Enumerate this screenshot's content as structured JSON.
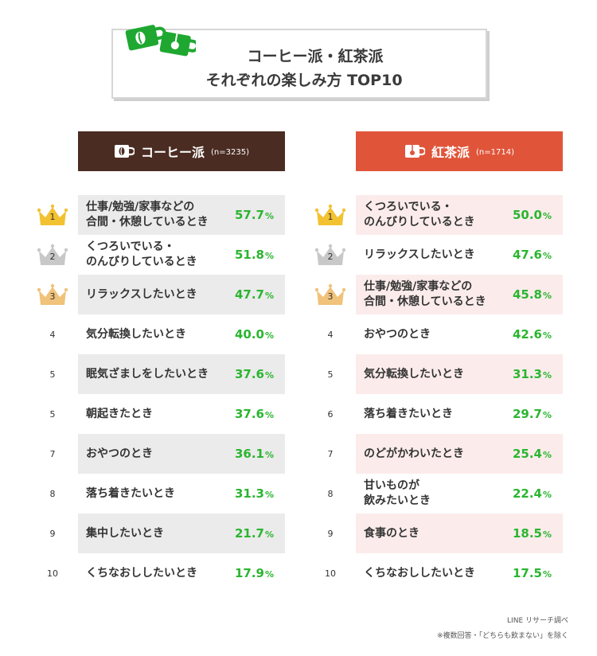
{
  "title": {
    "line1": "コーヒー派・紅茶派",
    "line2": "それぞれの楽しみ方 TOP10"
  },
  "colors": {
    "coffee_header": "#4a2c22",
    "tea_header": "#e0553a",
    "coffee_row_shade": "#ebebeb",
    "tea_row_shade": "#fbeceb",
    "percent_text": "#2bb530",
    "title_icon": "#1fa831",
    "gold": "#f2c230",
    "silver": "#c8c8c8",
    "bronze": "#f0c27a"
  },
  "icons": [
    "coffee-cup-icon",
    "tea-cup-icon",
    "crown-icon"
  ],
  "chart_data": [
    {
      "type": "table",
      "title": "コーヒー派",
      "sample": "(n=3235)",
      "unit": "%",
      "ranks": [
        "1",
        "2",
        "3",
        "4",
        "5",
        "5",
        "7",
        "8",
        "9",
        "10"
      ],
      "categories": [
        "仕事/勉強/家事などの\n合間・休憩しているとき",
        "くつろいでいる・\nのんびりしているとき",
        "リラックスしたいとき",
        "気分転換したいとき",
        "眠気ざましをしたいとき",
        "朝起きたとき",
        "おやつのとき",
        "落ち着きたいとき",
        "集中したいとき",
        "くちなおししたいとき"
      ],
      "values": [
        "57.7",
        "51.8",
        "47.7",
        "40.0",
        "37.6",
        "37.6",
        "36.1",
        "31.3",
        "21.7",
        "17.9"
      ]
    },
    {
      "type": "table",
      "title": "紅茶派",
      "sample": "(n=1714)",
      "unit": "%",
      "ranks": [
        "1",
        "2",
        "3",
        "4",
        "5",
        "6",
        "7",
        "8",
        "9",
        "10"
      ],
      "categories": [
        "くつろいでいる・\nのんびりしているとき",
        "リラックスしたいとき",
        "仕事/勉強/家事などの\n合間・休憩しているとき",
        "おやつのとき",
        "気分転換したいとき",
        "落ち着きたいとき",
        "のどがかわいたとき",
        "甘いものが\n飲みたいとき",
        "食事のとき",
        "くちなおししたいとき"
      ],
      "values": [
        "50.0",
        "47.6",
        "45.8",
        "42.6",
        "31.3",
        "29.7",
        "25.4",
        "22.4",
        "18.5",
        "17.5"
      ]
    }
  ],
  "footer": {
    "source": "LINE リサーチ調べ",
    "note": "※複数回答・「どちらも飲まない」を除く"
  }
}
